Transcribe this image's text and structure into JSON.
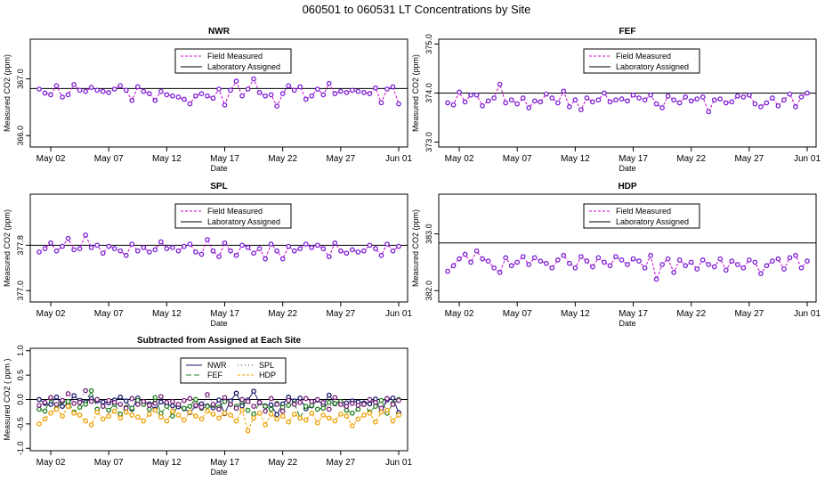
{
  "page_title": "060501  to  060531 LT Concentrations by Site",
  "chart_data": [
    {
      "type": "line",
      "title": "NWR",
      "xlabel": "Date",
      "ylabel": "Measured CO2 (ppm)",
      "x_ticks": [
        "May 02",
        "May 07",
        "May 12",
        "May 17",
        "May 22",
        "May 27",
        "Jun 01"
      ],
      "x_range": [
        0,
        31
      ],
      "x_tick_days": [
        1,
        6,
        11,
        16,
        21,
        26,
        31
      ],
      "ylim": [
        365.8,
        367.7
      ],
      "y_ticks": [
        366.0,
        367.0
      ],
      "y_tick_labels": [
        "366.0",
        "367.0"
      ],
      "assigned": 366.83,
      "legend": [
        "Field Measured",
        "Laboratory Assigned"
      ],
      "legend_position": "top-center",
      "series": [
        {
          "label": "Field Measured",
          "color": "#cc00cc",
          "marker_color": "#7b1fd6",
          "x": [
            0,
            0.5,
            1,
            1.5,
            2,
            2.5,
            3,
            3.5,
            4,
            4.5,
            5,
            5.5,
            6,
            6.5,
            7,
            7.5,
            8,
            8.5,
            9,
            9.5,
            10,
            10.5,
            11,
            11.5,
            12,
            12.5,
            13,
            13.5,
            14,
            14.5,
            15,
            15.5,
            16,
            16.5,
            17,
            17.5,
            18,
            18.5,
            19,
            19.5,
            20,
            20.5,
            21,
            21.5,
            22,
            22.5,
            23,
            23.5,
            24,
            24.5,
            25,
            25.5,
            26,
            26.5,
            27,
            27.5,
            28,
            28.5,
            29,
            29.5,
            30,
            30.5,
            31
          ],
          "values": [
            366.82,
            366.75,
            366.72,
            366.88,
            366.68,
            366.72,
            366.9,
            366.8,
            366.78,
            366.85,
            366.8,
            366.78,
            366.76,
            366.82,
            366.88,
            366.8,
            366.62,
            366.86,
            366.78,
            366.74,
            366.62,
            366.78,
            366.72,
            366.7,
            366.68,
            366.64,
            366.56,
            366.7,
            366.74,
            366.7,
            366.66,
            366.82,
            366.54,
            366.8,
            366.96,
            366.7,
            366.82,
            367.0,
            366.76,
            366.7,
            366.72,
            366.52,
            366.74,
            366.88,
            366.8,
            366.86,
            366.64,
            366.7,
            366.82,
            366.72,
            366.92,
            366.74,
            366.78,
            366.76,
            366.8,
            366.78,
            366.76,
            366.74,
            366.84,
            366.58,
            366.82,
            366.86,
            366.56
          ],
          "values_note": ""
        }
      ]
    },
    {
      "type": "line",
      "title": "FEF",
      "xlabel": "Date",
      "ylabel": "Measured CO2 (ppm)",
      "x_ticks": [
        "May 02",
        "May 07",
        "May 12",
        "May 17",
        "May 22",
        "May 27",
        "Jun 01"
      ],
      "x_range": [
        0,
        31
      ],
      "x_tick_days": [
        1,
        6,
        11,
        16,
        21,
        26,
        31
      ],
      "ylim": [
        372.9,
        375.1
      ],
      "y_ticks": [
        373.0,
        374.0,
        375.0
      ],
      "y_tick_labels": [
        "373.0",
        "374.0",
        "375.0"
      ],
      "assigned": 374.0,
      "legend": [
        "Field Measured",
        "Laboratory Assigned"
      ],
      "legend_position": "top-center",
      "series": [
        {
          "label": "Field Measured",
          "color": "#cc00cc",
          "marker_color": "#7b1fd6",
          "x": [
            0,
            0.5,
            1,
            1.5,
            2,
            2.5,
            3,
            3.5,
            4,
            4.5,
            5,
            5.5,
            6,
            6.5,
            7,
            7.5,
            8,
            8.5,
            9,
            9.5,
            10,
            10.5,
            11,
            11.5,
            12,
            12.5,
            13,
            13.5,
            14,
            14.5,
            15,
            15.5,
            16,
            16.5,
            17,
            17.5,
            18,
            18.5,
            19,
            19.5,
            20,
            20.5,
            21,
            21.5,
            22,
            22.5,
            23,
            23.5,
            24,
            24.5,
            25,
            25.5,
            26,
            26.5,
            27,
            27.5,
            28,
            28.5,
            29,
            29.5,
            30,
            30.5,
            31
          ],
          "values": [
            373.8,
            373.76,
            374.02,
            373.82,
            373.96,
            373.96,
            373.74,
            373.84,
            373.9,
            374.18,
            373.8,
            373.86,
            373.78,
            373.9,
            373.7,
            373.84,
            373.82,
            373.98,
            373.9,
            373.8,
            374.04,
            373.72,
            373.86,
            373.66,
            373.9,
            373.82,
            373.86,
            374.0,
            373.82,
            373.86,
            373.88,
            373.84,
            373.96,
            373.9,
            373.86,
            373.96,
            373.78,
            373.7,
            373.94,
            373.86,
            373.8,
            373.92,
            373.84,
            373.88,
            373.92,
            373.62,
            373.86,
            373.88,
            373.8,
            373.82,
            373.94,
            373.92,
            373.96,
            373.78,
            373.72,
            373.8,
            373.9,
            373.74,
            373.86,
            373.98,
            373.72,
            373.92,
            374.0
          ],
          "values_note": ""
        }
      ]
    },
    {
      "type": "line",
      "title": "SPL",
      "xlabel": "Date",
      "ylabel": "Measured CO2 (ppm)",
      "x_ticks": [
        "May 02",
        "May 07",
        "May 12",
        "May 17",
        "May 22",
        "May 27",
        "Jun 01"
      ],
      "x_range": [
        0,
        31
      ],
      "x_tick_days": [
        1,
        6,
        11,
        16,
        21,
        26,
        31
      ],
      "ylim": [
        376.8,
        378.7
      ],
      "y_ticks": [
        377.0,
        377.8
      ],
      "y_tick_labels": [
        "377.0",
        "377.8"
      ],
      "assigned": 377.8,
      "legend": [
        "Field Measured",
        "Laboratory Assigned"
      ],
      "legend_position": "top-center",
      "series": [
        {
          "label": "Field Measured",
          "color": "#cc00cc",
          "marker_color": "#7b1fd6",
          "x": [
            0,
            0.5,
            1,
            1.5,
            2,
            2.5,
            3,
            3.5,
            4,
            4.5,
            5,
            5.5,
            6,
            6.5,
            7,
            7.5,
            8,
            8.5,
            9,
            9.5,
            10,
            10.5,
            11,
            11.5,
            12,
            12.5,
            13,
            13.5,
            14,
            14.5,
            15,
            15.5,
            16,
            16.5,
            17,
            17.5,
            18,
            18.5,
            19,
            19.5,
            20,
            20.5,
            21,
            21.5,
            22,
            22.5,
            23,
            23.5,
            24,
            24.5,
            25,
            25.5,
            26,
            26.5,
            27,
            27.5,
            28,
            28.5,
            29,
            29.5,
            30,
            30.5,
            31
          ],
          "values": [
            377.68,
            377.74,
            377.84,
            377.7,
            377.78,
            377.92,
            377.72,
            377.74,
            377.98,
            377.76,
            377.8,
            377.66,
            377.78,
            377.74,
            377.7,
            377.62,
            377.82,
            377.7,
            377.76,
            377.68,
            377.72,
            377.86,
            377.74,
            377.76,
            377.7,
            377.78,
            377.82,
            377.68,
            377.64,
            377.9,
            377.7,
            377.6,
            377.84,
            377.7,
            377.62,
            377.8,
            377.76,
            377.66,
            377.74,
            377.56,
            377.82,
            377.7,
            377.56,
            377.78,
            377.7,
            377.74,
            377.82,
            377.76,
            377.8,
            377.74,
            377.6,
            377.84,
            377.7,
            377.66,
            377.72,
            377.68,
            377.7,
            377.8,
            377.74,
            377.62,
            377.82,
            377.7,
            377.78
          ],
          "values_note": ""
        }
      ]
    },
    {
      "type": "line",
      "title": "HDP",
      "xlabel": "Date",
      "ylabel": "Measured CO2 (ppm)",
      "x_ticks": [
        "May 02",
        "May 07",
        "May 12",
        "May 17",
        "May 22",
        "May 27",
        "Jun 01"
      ],
      "x_range": [
        0,
        31
      ],
      "x_tick_days": [
        1,
        6,
        11,
        16,
        21,
        26,
        31
      ],
      "ylim": [
        381.8,
        383.7
      ],
      "y_ticks": [
        382.0,
        383.0
      ],
      "y_tick_labels": [
        "382.0",
        "383.0"
      ],
      "assigned": 382.84,
      "legend": [
        "Field Measured",
        "Laboratory Assigned"
      ],
      "legend_position": "top-center",
      "series": [
        {
          "label": "Field Measured",
          "color": "#cc00cc",
          "marker_color": "#7b1fd6",
          "x": [
            0,
            0.5,
            1,
            1.5,
            2,
            2.5,
            3,
            3.5,
            4,
            4.5,
            5,
            5.5,
            6,
            6.5,
            7,
            7.5,
            8,
            8.5,
            9,
            9.5,
            10,
            10.5,
            11,
            11.5,
            12,
            12.5,
            13,
            13.5,
            14,
            14.5,
            15,
            15.5,
            16,
            16.5,
            17,
            17.5,
            18,
            18.5,
            19,
            19.5,
            20,
            20.5,
            21,
            21.5,
            22,
            22.5,
            23,
            23.5,
            24,
            24.5,
            25,
            25.5,
            26,
            26.5,
            27,
            27.5,
            28,
            28.5,
            29,
            29.5,
            30,
            30.5,
            31
          ],
          "values": [
            382.34,
            382.44,
            382.56,
            382.64,
            382.5,
            382.7,
            382.56,
            382.52,
            382.4,
            382.32,
            382.58,
            382.44,
            382.5,
            382.6,
            382.46,
            382.58,
            382.52,
            382.48,
            382.4,
            382.54,
            382.62,
            382.48,
            382.4,
            382.6,
            382.52,
            382.42,
            382.58,
            382.5,
            382.44,
            382.6,
            382.54,
            382.46,
            382.56,
            382.52,
            382.4,
            382.62,
            382.2,
            382.46,
            382.56,
            382.32,
            382.54,
            382.44,
            382.5,
            382.38,
            382.54,
            382.46,
            382.42,
            382.56,
            382.36,
            382.52,
            382.46,
            382.4,
            382.54,
            382.5,
            382.3,
            382.44,
            382.52,
            382.56,
            382.38,
            382.58,
            382.62,
            382.4,
            382.52
          ],
          "values_note": ""
        }
      ]
    },
    {
      "type": "scatter",
      "title": "Subtracted from Assigned at Each Site",
      "xlabel": "Date",
      "ylabel": "Measured CO2 ( ppm )",
      "x_ticks": [
        "May 02",
        "May 07",
        "May 12",
        "May 17",
        "May 22",
        "May 27",
        "Jun 01"
      ],
      "x_range": [
        0,
        31
      ],
      "x_tick_days": [
        1,
        6,
        11,
        16,
        21,
        26,
        31
      ],
      "ylim": [
        -1.05,
        1.05
      ],
      "y_ticks": [
        -1.0,
        -0.5,
        0.0,
        0.5,
        1.0
      ],
      "y_tick_labels": [
        "-1.0",
        "-0.5",
        "0.0",
        "0.5",
        "1.0"
      ],
      "zero_line": 0,
      "legend_position": "top-center",
      "series": [
        {
          "name": "NWR",
          "color": "#1a1a6e",
          "dash": "",
          "values": [
            0.0,
            -0.08,
            -0.1,
            0.05,
            -0.14,
            -0.1,
            0.08,
            -0.02,
            -0.05,
            0.02,
            -0.03,
            -0.05,
            -0.07,
            -0.01,
            0.05,
            -0.03,
            -0.2,
            0.03,
            -0.05,
            -0.09,
            -0.2,
            -0.05,
            -0.11,
            -0.13,
            -0.15,
            -0.19,
            -0.27,
            -0.13,
            -0.09,
            -0.13,
            -0.17,
            -0.01,
            -0.29,
            -0.03,
            0.13,
            -0.13,
            -0.01,
            0.17,
            -0.07,
            -0.13,
            -0.11,
            -0.31,
            -0.09,
            0.05,
            -0.03,
            0.03,
            -0.19,
            -0.13,
            -0.01,
            -0.11,
            0.09,
            -0.09,
            -0.05,
            -0.07,
            -0.03,
            -0.05,
            -0.07,
            -0.09,
            0.01,
            -0.25,
            -0.01,
            0.03,
            -0.27
          ]
        },
        {
          "name": "FEF",
          "color": "#1f7f1f",
          "dash": "6,3",
          "values": [
            -0.2,
            -0.24,
            0.02,
            -0.18,
            -0.04,
            -0.04,
            -0.26,
            -0.16,
            -0.1,
            0.18,
            -0.2,
            -0.14,
            -0.22,
            -0.1,
            -0.3,
            -0.16,
            -0.18,
            -0.02,
            -0.1,
            -0.2,
            0.04,
            -0.28,
            -0.14,
            -0.34,
            -0.1,
            -0.18,
            -0.14,
            0.0,
            -0.18,
            -0.14,
            -0.12,
            -0.16,
            -0.04,
            -0.1,
            -0.14,
            -0.04,
            -0.22,
            -0.3,
            -0.06,
            -0.14,
            -0.2,
            -0.08,
            -0.16,
            -0.12,
            -0.08,
            -0.38,
            -0.14,
            -0.12,
            -0.2,
            -0.18,
            -0.06,
            -0.08,
            -0.04,
            -0.22,
            -0.28,
            -0.2,
            -0.1,
            -0.26,
            -0.14,
            -0.02,
            -0.28,
            -0.08,
            0.0
          ]
        },
        {
          "name": "SPL",
          "color": "#7a1f7a",
          "dash": "1,3",
          "values": [
            -0.12,
            -0.06,
            0.04,
            -0.1,
            -0.02,
            0.12,
            -0.08,
            -0.06,
            0.18,
            -0.04,
            0.0,
            -0.14,
            -0.02,
            -0.06,
            -0.1,
            -0.18,
            0.02,
            -0.1,
            -0.04,
            -0.12,
            -0.08,
            0.06,
            -0.06,
            -0.04,
            -0.1,
            -0.02,
            0.02,
            -0.12,
            -0.16,
            0.1,
            -0.1,
            -0.2,
            0.04,
            -0.1,
            -0.18,
            0.0,
            -0.04,
            -0.14,
            -0.06,
            -0.24,
            0.02,
            -0.1,
            -0.24,
            -0.02,
            -0.1,
            -0.06,
            0.02,
            -0.04,
            0.0,
            -0.06,
            -0.2,
            0.04,
            -0.1,
            -0.14,
            -0.08,
            -0.12,
            -0.1,
            0.0,
            -0.06,
            -0.18,
            0.02,
            -0.1,
            -0.02
          ]
        },
        {
          "name": "HDP",
          "color": "#f0a000",
          "dash": "3,2",
          "values": [
            -0.5,
            -0.4,
            -0.28,
            -0.2,
            -0.34,
            -0.14,
            -0.28,
            -0.32,
            -0.44,
            -0.52,
            -0.26,
            -0.4,
            -0.34,
            -0.24,
            -0.38,
            -0.26,
            -0.32,
            -0.36,
            -0.44,
            -0.3,
            -0.22,
            -0.36,
            -0.44,
            -0.24,
            -0.32,
            -0.42,
            -0.26,
            -0.34,
            -0.4,
            -0.24,
            -0.3,
            -0.38,
            -0.28,
            -0.32,
            -0.44,
            -0.22,
            -0.64,
            -0.38,
            -0.28,
            -0.52,
            -0.3,
            -0.4,
            -0.34,
            -0.46,
            -0.3,
            -0.38,
            -0.42,
            -0.28,
            -0.48,
            -0.32,
            -0.38,
            -0.44,
            -0.3,
            -0.34,
            -0.54,
            -0.4,
            -0.32,
            -0.28,
            -0.46,
            -0.26,
            -0.22,
            -0.44,
            -0.32
          ]
        }
      ]
    }
  ]
}
